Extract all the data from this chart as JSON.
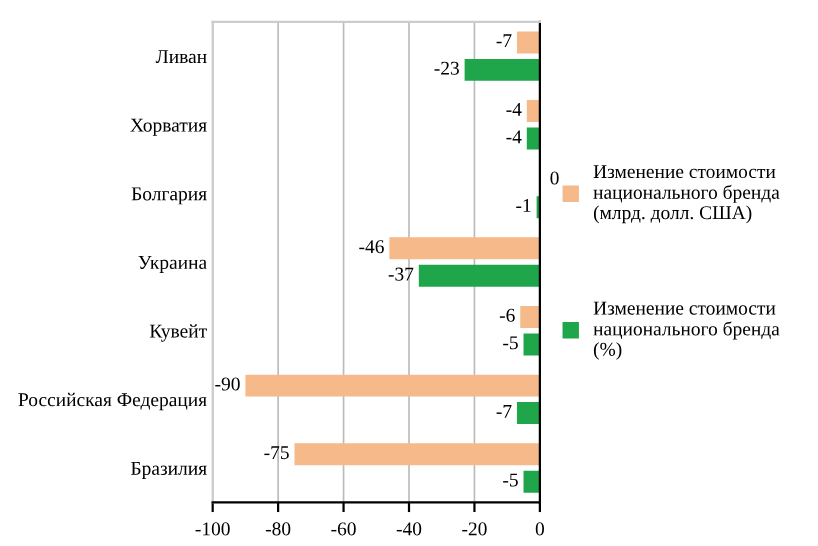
{
  "chart_data": {
    "type": "bar",
    "orientation": "horizontal",
    "categories": [
      "Ливан",
      "Хорватия",
      "Болгария",
      "Украина",
      "Кувейт",
      "Российская Федерация",
      "Бразилия"
    ],
    "series": [
      {
        "name": "Изменение стоимости национального бренда (млрд. долл. США)",
        "color": "#f5b98a",
        "values": [
          -7,
          -4,
          0,
          -46,
          -6,
          -90,
          -75
        ]
      },
      {
        "name": "Изменение стоимости национального бренда (%)",
        "color": "#1fa64a",
        "values": [
          -23,
          -4,
          -1,
          -37,
          -5,
          -7,
          -5
        ]
      }
    ],
    "xlim": [
      -100,
      0
    ],
    "xticks": [
      -100,
      -80,
      -60,
      -40,
      -20,
      0
    ],
    "grid": "x",
    "legend": "right",
    "data_labels": true
  }
}
